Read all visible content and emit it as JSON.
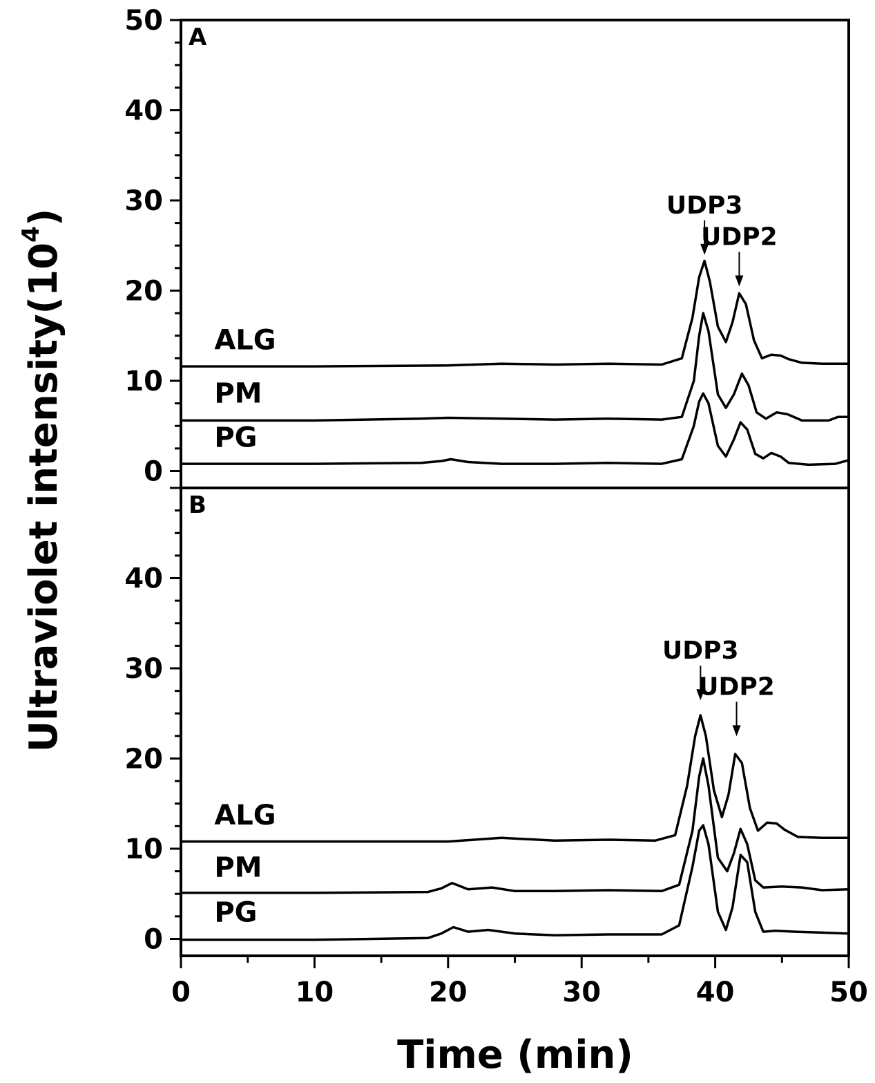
{
  "chart_data": [
    {
      "panel": "A",
      "type": "line",
      "xlim": [
        0,
        50
      ],
      "ylim": [
        -2,
        50
      ],
      "y_ticks": [
        0,
        10,
        20,
        30,
        40,
        50
      ],
      "annotations": [
        {
          "text": "UDP3",
          "x": 39.2,
          "y": 23.5
        },
        {
          "text": "UDP2",
          "x": 41.8,
          "y": 20.0
        }
      ],
      "series": [
        {
          "name": "ALG",
          "label_x": 2.5,
          "label_y": 13.5,
          "x": [
            0,
            10,
            20,
            24,
            28,
            32,
            36,
            37.5,
            38.3,
            38.8,
            39.2,
            39.6,
            40.2,
            40.8,
            41.3,
            41.8,
            42.3,
            42.9,
            43.5,
            44.2,
            44.9,
            45.5,
            46.5,
            48,
            50
          ],
          "y": [
            11.6,
            11.6,
            11.7,
            11.9,
            11.8,
            11.9,
            11.8,
            12.5,
            17.0,
            21.5,
            23.3,
            21.0,
            16.0,
            14.3,
            16.5,
            19.7,
            18.5,
            14.5,
            12.5,
            12.9,
            12.8,
            12.4,
            12.0,
            11.9,
            11.9
          ]
        },
        {
          "name": "PM",
          "label_x": 2.5,
          "label_y": 7.6,
          "x": [
            0,
            10,
            18,
            20,
            24,
            28,
            32,
            36,
            37.5,
            38.4,
            38.8,
            39.1,
            39.5,
            40.2,
            40.8,
            41.4,
            42.0,
            42.5,
            43.1,
            43.8,
            44.6,
            45.4,
            46.5,
            48.5,
            49.2,
            50
          ],
          "y": [
            5.6,
            5.6,
            5.8,
            5.9,
            5.8,
            5.7,
            5.8,
            5.7,
            6.0,
            10.0,
            15.0,
            17.5,
            15.5,
            8.5,
            7.0,
            8.5,
            10.8,
            9.5,
            6.5,
            5.8,
            6.5,
            6.3,
            5.6,
            5.6,
            6.0,
            6.0
          ]
        },
        {
          "name": "PG",
          "label_x": 2.5,
          "label_y": 2.7,
          "x": [
            0,
            10,
            18,
            19.5,
            20.2,
            21.5,
            24,
            28,
            32,
            36,
            37.5,
            38.4,
            38.8,
            39.1,
            39.5,
            40.2,
            40.8,
            41.4,
            41.9,
            42.4,
            43.0,
            43.6,
            44.2,
            44.9,
            45.5,
            47,
            49,
            50
          ],
          "y": [
            0.8,
            0.8,
            0.9,
            1.1,
            1.3,
            1.0,
            0.8,
            0.8,
            0.9,
            0.8,
            1.3,
            5.0,
            7.7,
            8.6,
            7.5,
            2.8,
            1.6,
            3.5,
            5.4,
            4.6,
            1.9,
            1.4,
            2.0,
            1.6,
            0.9,
            0.7,
            0.8,
            1.2
          ]
        }
      ]
    },
    {
      "panel": "B",
      "type": "line",
      "xlim": [
        0,
        50
      ],
      "ylim": [
        -2,
        50
      ],
      "y_ticks": [
        0,
        10,
        20,
        30,
        40
      ],
      "annotations": [
        {
          "text": "UDP3",
          "x": 38.9,
          "y": 26.0
        },
        {
          "text": "UDP2",
          "x": 41.6,
          "y": 22.0
        }
      ],
      "series": [
        {
          "name": "ALG",
          "label_x": 2.5,
          "label_y": 12.7,
          "x": [
            0,
            10,
            20,
            24,
            28,
            32,
            35.5,
            37.0,
            37.9,
            38.5,
            38.9,
            39.3,
            39.9,
            40.5,
            41.0,
            41.5,
            42.0,
            42.6,
            43.2,
            43.9,
            44.6,
            45.2,
            46.2,
            48,
            50
          ],
          "y": [
            10.8,
            10.8,
            10.8,
            11.2,
            10.9,
            11.0,
            10.9,
            11.5,
            17.0,
            22.5,
            24.8,
            22.5,
            16.5,
            13.5,
            16.0,
            20.5,
            19.5,
            14.5,
            12.0,
            12.9,
            12.8,
            12.1,
            11.3,
            11.2,
            11.2
          ]
        },
        {
          "name": "PM",
          "label_x": 2.5,
          "label_y": 6.9,
          "x": [
            0,
            10,
            18.5,
            19.5,
            20.3,
            21.5,
            23.3,
            25,
            28,
            32,
            36,
            37.3,
            38.3,
            38.8,
            39.1,
            39.5,
            40.2,
            40.9,
            41.4,
            41.9,
            42.4,
            43.0,
            43.6,
            45,
            46.5,
            48,
            50
          ],
          "y": [
            5.1,
            5.1,
            5.2,
            5.6,
            6.2,
            5.5,
            5.7,
            5.3,
            5.3,
            5.4,
            5.3,
            6.0,
            12.0,
            18.0,
            20.0,
            17.0,
            9.0,
            7.5,
            9.5,
            12.2,
            10.5,
            6.5,
            5.7,
            5.8,
            5.7,
            5.4,
            5.5
          ]
        },
        {
          "name": "PG",
          "label_x": 2.5,
          "label_y": 1.9,
          "x": [
            0,
            10,
            18.5,
            19.5,
            20.4,
            21.5,
            23,
            25,
            28,
            32,
            36,
            37.3,
            38.3,
            38.8,
            39.1,
            39.5,
            40.2,
            40.8,
            41.3,
            41.9,
            42.4,
            43.0,
            43.6,
            44.5,
            46,
            48,
            50
          ],
          "y": [
            -0.1,
            -0.1,
            0.1,
            0.6,
            1.3,
            0.8,
            1.0,
            0.6,
            0.4,
            0.5,
            0.5,
            1.5,
            8.0,
            12.0,
            12.6,
            10.5,
            3.0,
            1.0,
            3.5,
            9.3,
            8.5,
            3.0,
            0.8,
            0.9,
            0.8,
            0.7,
            0.6
          ]
        }
      ]
    }
  ],
  "x_axis": {
    "label": "Time (min)",
    "ticks": [
      0,
      10,
      20,
      30,
      40,
      50
    ]
  },
  "y_axis": {
    "label": "Ultraviolet intensity",
    "unit_prefix": "(10",
    "unit_exp": "4",
    "unit_suffix": ")"
  }
}
